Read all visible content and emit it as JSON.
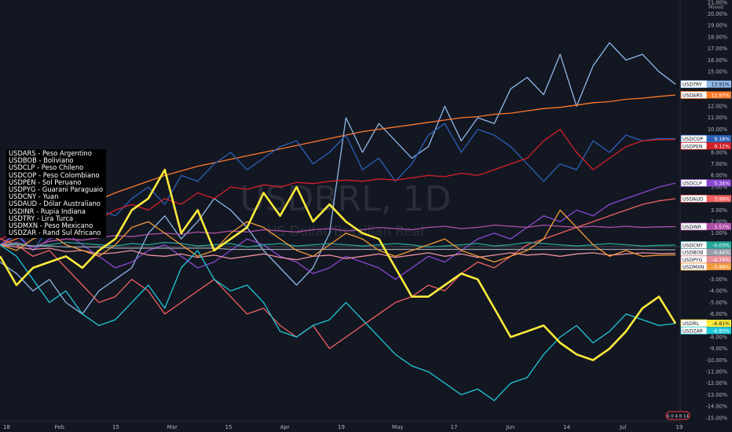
{
  "chart_data": {
    "type": "line",
    "watermark": {
      "symbol": "USDBRL, 1D",
      "name": "US Dollar/Brazilian Real"
    },
    "scale_mode": "Mixed",
    "ylim": [
      -15,
      21
    ],
    "y_ticks": [
      "21.00%",
      "20.00%",
      "19.00%",
      "18.00%",
      "17.00%",
      "16.00%",
      "15.00%",
      "14.00%",
      "13.00%",
      "12.00%",
      "11.00%",
      "10.00%",
      "9.00%",
      "8.00%",
      "7.00%",
      "6.00%",
      "5.00%",
      "4.00%",
      "3.00%",
      "2.00%",
      "1.00%",
      "0.00%",
      "-1.00%",
      "-2.00%",
      "-3.00%",
      "-4.00%",
      "-5.00%",
      "-6.00%",
      "-7.00%",
      "-8.00%",
      "-9.00%",
      "-10.00%",
      "-11.00%",
      "-12.00%",
      "-13.00%",
      "-14.00%",
      "-15.00%"
    ],
    "x_ticks": [
      "18",
      "Feb",
      "15",
      "Mar",
      "15",
      "Apr",
      "19",
      "May",
      "17",
      "Jun",
      "14",
      "Jul",
      "19"
    ],
    "grid": false,
    "legend_position": "left",
    "legend": [
      "USDARS - Peso Argentino",
      "USDBOB - Boliviano",
      "USDCLP - Peso Chileno",
      "USDCOP - Peso Colombiano",
      "USDPEN - Sol Peruano",
      "USDPYG - Guarani Paraguaio",
      "USDCNY - Yuan",
      "USDAUD - Dólar Australiano",
      "USDINR - Rupia Indiana",
      "USDTRY - Lira Turca",
      "USDMXN - Peso Mexicano",
      "USDZAR - Rand Sul Africano"
    ],
    "series": [
      {
        "name": "USDTRY",
        "last_label": "13.91%",
        "last": 13.91,
        "color": "#8fb8e8",
        "width": 1.3,
        "values": [
          -1.5,
          -2.5,
          -4.0,
          -3.0,
          -5.0,
          -6.0,
          -4.0,
          -3.0,
          -2.0,
          1.0,
          2.5,
          0.5,
          2.0,
          4.0,
          3.0,
          1.5,
          -0.5,
          -2.0,
          -3.5,
          -2.0,
          1.0,
          11.0,
          8.0,
          10.5,
          9.0,
          7.5,
          8.5,
          12.0,
          9.0,
          11.0,
          10.5,
          13.5,
          14.5,
          13.0,
          16.5,
          12.0,
          15.5,
          17.5,
          16.0,
          16.5,
          15.0,
          13.91
        ]
      },
      {
        "name": "USDARS",
        "last_label": "12.97%",
        "last": 12.97,
        "color": "#ff7a2a",
        "width": 1.3,
        "values": [
          0.0,
          0.5,
          1.2,
          2.0,
          2.7,
          3.3,
          3.9,
          4.5,
          5.0,
          5.5,
          6.0,
          6.4,
          6.8,
          7.1,
          7.4,
          7.7,
          8.0,
          8.3,
          8.6,
          8.9,
          9.2,
          9.5,
          9.8,
          10.0,
          10.2,
          10.4,
          10.6,
          10.8,
          11.0,
          11.1,
          11.3,
          11.4,
          11.6,
          11.8,
          11.9,
          12.1,
          12.3,
          12.4,
          12.6,
          12.7,
          12.85,
          12.97
        ]
      },
      {
        "name": "USDCOP",
        "last_label": "9.18%",
        "last": 9.18,
        "color": "#2a62b8",
        "width": 1.3,
        "values": [
          0.0,
          0.8,
          -0.5,
          1.5,
          2.0,
          1.0,
          3.0,
          2.5,
          4.0,
          5.0,
          3.5,
          6.0,
          5.5,
          7.0,
          8.0,
          6.5,
          7.5,
          8.5,
          9.0,
          7.0,
          8.0,
          9.5,
          6.5,
          7.5,
          5.5,
          7.0,
          9.5,
          10.5,
          8.0,
          10.0,
          9.5,
          8.5,
          7.0,
          5.5,
          7.0,
          6.5,
          9.0,
          8.0,
          9.5,
          9.0,
          9.2,
          9.18
        ]
      },
      {
        "name": "USDPEN",
        "last_label": "9.12%",
        "last": 9.12,
        "color": "#d42027",
        "width": 1.3,
        "values": [
          0.5,
          1.0,
          1.2,
          1.5,
          2.0,
          2.5,
          2.2,
          3.0,
          3.5,
          3.0,
          4.0,
          3.5,
          4.5,
          4.0,
          5.0,
          4.8,
          5.2,
          5.0,
          5.4,
          5.3,
          5.5,
          5.6,
          5.5,
          5.7,
          5.6,
          5.8,
          6.0,
          5.9,
          6.2,
          6.0,
          6.5,
          7.0,
          7.5,
          9.0,
          10.0,
          8.0,
          6.5,
          7.5,
          8.5,
          9.0,
          9.1,
          9.12
        ]
      },
      {
        "name": "USDCLP",
        "last_label": "5.34%",
        "last": 5.34,
        "color": "#8a48d0",
        "width": 1.3,
        "values": [
          0.0,
          1.0,
          -0.5,
          0.5,
          1.0,
          0.0,
          -1.0,
          -2.0,
          -1.5,
          -0.5,
          0.0,
          -1.0,
          -2.0,
          -1.5,
          -0.5,
          0.5,
          0.0,
          -1.0,
          -1.5,
          -2.5,
          -2.0,
          -1.0,
          -1.5,
          -2.0,
          -3.0,
          -2.0,
          -1.0,
          -1.5,
          -0.5,
          0.5,
          1.0,
          0.5,
          1.5,
          2.5,
          2.0,
          3.0,
          2.5,
          3.5,
          4.0,
          4.5,
          5.0,
          5.34
        ]
      },
      {
        "name": "USDAUD",
        "last_label": "3.99%",
        "last": 3.99,
        "color": "#f06262",
        "width": 1.3,
        "values": [
          0.5,
          0.0,
          -1.0,
          -0.5,
          -2.0,
          -3.5,
          -5.0,
          -4.5,
          -3.0,
          -4.0,
          -6.0,
          -5.0,
          -4.0,
          -3.0,
          -4.5,
          -6.0,
          -5.5,
          -7.0,
          -8.0,
          -7.0,
          -9.0,
          -8.0,
          -7.0,
          -6.0,
          -5.0,
          -4.5,
          -3.5,
          -4.0,
          -2.5,
          -1.5,
          -2.0,
          -1.0,
          0.0,
          0.5,
          1.0,
          1.5,
          2.0,
          2.5,
          3.0,
          3.5,
          3.8,
          3.99
        ]
      },
      {
        "name": "USDINR",
        "last_label": "1.57%",
        "last": 1.57,
        "color": "#b050a8",
        "width": 1.3,
        "values": [
          0.0,
          0.2,
          -0.2,
          0.3,
          0.5,
          0.4,
          0.6,
          0.8,
          0.7,
          0.9,
          1.0,
          0.9,
          1.1,
          1.0,
          1.2,
          1.1,
          1.3,
          1.2,
          1.1,
          1.3,
          1.4,
          1.2,
          1.3,
          1.5,
          1.4,
          1.3,
          1.5,
          1.6,
          1.4,
          1.5,
          1.7,
          1.6,
          1.5,
          1.7,
          1.6,
          1.5,
          1.6,
          1.5,
          1.6,
          1.5,
          1.55,
          1.57
        ]
      },
      {
        "name": "USDCNY",
        "last_label": "-0.03%",
        "last": -0.03,
        "color": "#26a69a",
        "width": 1.3,
        "values": [
          0.0,
          0.1,
          -0.1,
          0.0,
          0.2,
          0.1,
          0.0,
          -0.1,
          0.1,
          0.0,
          0.2,
          0.1,
          -0.1,
          0.0,
          0.1,
          -0.2,
          0.0,
          0.1,
          -0.1,
          0.0,
          0.1,
          0.0,
          -0.1,
          0.0,
          0.1,
          0.0,
          -0.2,
          -0.1,
          0.0,
          0.1,
          -0.1,
          0.0,
          0.2,
          0.1,
          0.0,
          -0.1,
          0.0,
          0.1,
          0.0,
          -0.1,
          -0.05,
          -0.03
        ]
      },
      {
        "name": "USDBOB",
        "last_label": "-0.44%",
        "last": -0.44,
        "color": "#9aa0ab",
        "width": 1.3,
        "values": [
          0.0,
          0.0,
          -0.1,
          -0.1,
          -0.2,
          -0.2,
          -0.2,
          -0.3,
          -0.3,
          -0.3,
          -0.3,
          -0.3,
          -0.3,
          -0.3,
          -0.4,
          -0.4,
          -0.4,
          -0.4,
          -0.4,
          -0.4,
          -0.4,
          -0.4,
          -0.4,
          -0.4,
          -0.4,
          -0.4,
          -0.4,
          -0.4,
          -0.4,
          -0.4,
          -0.4,
          -0.4,
          -0.4,
          -0.4,
          -0.4,
          -0.4,
          -0.4,
          -0.4,
          -0.4,
          -0.4,
          -0.44,
          -0.44
        ]
      },
      {
        "name": "USDPYG",
        "last_label": "-0.74%",
        "last": -0.74,
        "color": "#e8909c",
        "width": 1.3,
        "values": [
          0.0,
          -0.2,
          -0.4,
          -0.3,
          -0.6,
          -0.5,
          -0.8,
          -0.7,
          -0.5,
          -0.9,
          -1.0,
          -0.8,
          -1.1,
          -0.9,
          -1.2,
          -1.0,
          -0.8,
          -1.1,
          -1.3,
          -1.0,
          -0.9,
          -1.2,
          -1.0,
          -0.8,
          -1.1,
          -0.9,
          -0.7,
          -1.0,
          -0.8,
          -1.1,
          -0.9,
          -0.7,
          -0.9,
          -0.8,
          -1.0,
          -0.8,
          -0.7,
          -0.9,
          -0.8,
          -0.7,
          -0.75,
          -0.74
        ]
      },
      {
        "name": "USDMXN",
        "last_label": "-0.88%",
        "last": -0.88,
        "color": "#f29a3a",
        "width": 1.3,
        "values": [
          0.0,
          -0.5,
          0.5,
          1.0,
          0.0,
          -0.5,
          -1.0,
          0.0,
          1.5,
          2.0,
          1.0,
          0.0,
          -1.0,
          -0.5,
          1.0,
          2.0,
          1.5,
          0.5,
          -0.5,
          -1.0,
          0.0,
          1.0,
          0.5,
          -0.5,
          -1.0,
          -0.5,
          0.0,
          0.5,
          -0.5,
          -1.0,
          -1.5,
          -1.0,
          -0.5,
          0.5,
          3.0,
          1.5,
          0.0,
          -1.0,
          -0.5,
          -1.0,
          -0.9,
          -0.88
        ]
      },
      {
        "name": "USDRL",
        "last_label": "-6.81%",
        "last": -6.81,
        "color": "#ffeb3b",
        "width": 2.6,
        "values": [
          -1.0,
          -3.5,
          -2.0,
          -1.5,
          -1.0,
          -2.0,
          -0.5,
          0.5,
          3.0,
          4.0,
          6.5,
          1.0,
          3.0,
          -0.5,
          0.5,
          1.5,
          4.5,
          2.5,
          5.0,
          2.0,
          3.5,
          2.0,
          1.0,
          0.5,
          -2.0,
          -4.5,
          -4.5,
          -3.5,
          -2.5,
          -3.0,
          -5.5,
          -8.0,
          -7.5,
          -7.0,
          -8.5,
          -9.5,
          -10.0,
          -9.0,
          -7.5,
          -5.5,
          -4.5,
          -6.81
        ]
      },
      {
        "name": "USDZAR",
        "last_label": "-6.83%",
        "last": -6.83,
        "color": "#1fc8d8",
        "width": 1.3,
        "values": [
          0.0,
          -1.0,
          -3.0,
          -5.0,
          -4.0,
          -6.0,
          -7.0,
          -6.5,
          -5.0,
          -3.5,
          -5.5,
          -2.0,
          -0.5,
          -3.0,
          -4.0,
          -3.5,
          -5.0,
          -7.5,
          -8.0,
          -7.0,
          -6.5,
          -5.0,
          -6.5,
          -8.0,
          -9.5,
          -10.5,
          -11.0,
          -12.0,
          -13.0,
          -12.5,
          -13.5,
          -12.0,
          -11.5,
          -9.5,
          -8.0,
          -7.0,
          -8.5,
          -7.5,
          -6.0,
          -6.5,
          -7.0,
          -6.83
        ]
      }
    ]
  }
}
